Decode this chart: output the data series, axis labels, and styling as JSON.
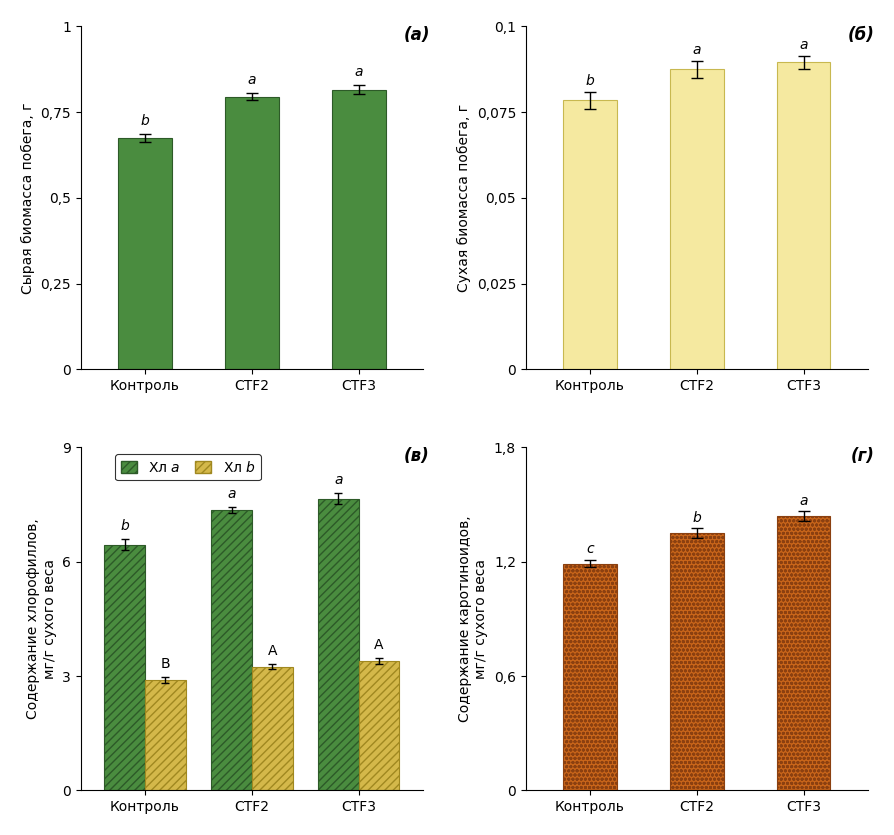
{
  "subplot_a": {
    "title": "(а)",
    "ylabel": "Сырая биомасса побега, г",
    "categories": [
      "Контроль",
      "СТF2",
      "СТF3"
    ],
    "values": [
      0.675,
      0.795,
      0.815
    ],
    "errors": [
      0.012,
      0.01,
      0.013
    ],
    "bar_color": "#4a8c3f",
    "bar_edge_color": "#2d5a28",
    "ylim": [
      0,
      1.0
    ],
    "yticks": [
      0,
      0.25,
      0.5,
      0.75,
      1.0
    ],
    "ytick_labels": [
      "0",
      "0,25",
      "0,5",
      "0,75",
      "1"
    ],
    "sig_labels": [
      "b",
      "a",
      "a"
    ]
  },
  "subplot_b": {
    "title": "(б)",
    "ylabel": "Сухая биомасса побега, г",
    "categories": [
      "Контроль",
      "СТF2",
      "СТF3"
    ],
    "values": [
      0.0785,
      0.0875,
      0.0895
    ],
    "errors": [
      0.0025,
      0.0025,
      0.002
    ],
    "bar_color": "#f5e9a0",
    "bar_edge_color": "#c8b850",
    "ylim": [
      0,
      0.1
    ],
    "yticks": [
      0,
      0.025,
      0.05,
      0.075,
      0.1
    ],
    "ytick_labels": [
      "0",
      "0,025",
      "0,05",
      "0,075",
      "0,1"
    ],
    "sig_labels": [
      "b",
      "a",
      "a"
    ]
  },
  "subplot_c": {
    "title": "(в)",
    "ylabel": "Содержание хлорофиллов,\nмг/г сухого веса",
    "categories": [
      "Контроль",
      "СТF2",
      "СТF3"
    ],
    "values_a": [
      6.45,
      7.35,
      7.65
    ],
    "errors_a": [
      0.15,
      0.08,
      0.15
    ],
    "values_b": [
      2.9,
      3.25,
      3.4
    ],
    "errors_b": [
      0.08,
      0.07,
      0.08
    ],
    "bar_color_a": "#4a8c3f",
    "bar_edge_color_a": "#2d5a28",
    "bar_color_b": "#d4b84a",
    "bar_edge_color_b": "#a08820",
    "ylim": [
      0,
      9
    ],
    "yticks": [
      0,
      3,
      6,
      9
    ],
    "ytick_labels": [
      "0",
      "3",
      "6",
      "9"
    ],
    "sig_labels_a": [
      "b",
      "a",
      "a"
    ],
    "sig_labels_b": [
      "B",
      "A",
      "A"
    ],
    "legend_label_a": "Хл ",
    "legend_label_b": "Хл "
  },
  "subplot_d": {
    "title": "(г)",
    "ylabel": "Содержание каротиноидов,\nмг/г сухого веса",
    "categories": [
      "Контроль",
      "СТF2",
      "СТF3"
    ],
    "values": [
      1.19,
      1.35,
      1.44
    ],
    "errors": [
      0.02,
      0.025,
      0.025
    ],
    "bar_color": "#c8651a",
    "bar_edge_color": "#8b4010",
    "ylim": [
      0,
      1.8
    ],
    "yticks": [
      0,
      0.6,
      1.2,
      1.8
    ],
    "ytick_labels": [
      "0",
      "0,6",
      "1,2",
      "1,8"
    ],
    "sig_labels": [
      "c",
      "b",
      "a"
    ]
  },
  "background_color": "#ffffff",
  "fontsize": 10,
  "title_fontsize": 11
}
